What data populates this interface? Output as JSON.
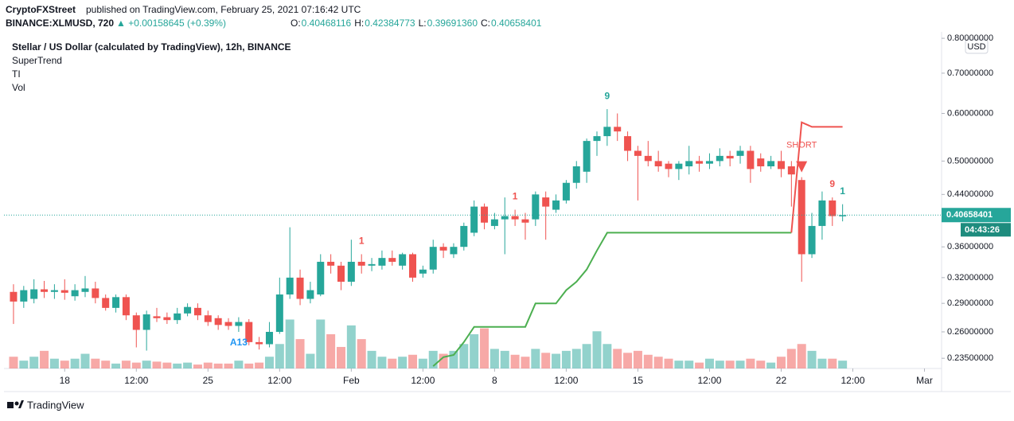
{
  "header": {
    "publisher": "CryptoFXStreet",
    "published": "published on TradingView.com, February 25, 2021 07:16:42 UTC",
    "symbol": "BINANCE:XLMUSD, 720",
    "change": "▲ +0.00158645 (+0.39%)",
    "ohlc": [
      {
        "label": "O:",
        "value": "0.40468116"
      },
      {
        "label": "H:",
        "value": "0.42384773"
      },
      {
        "label": "L:",
        "value": "0.39691360"
      },
      {
        "label": "C:",
        "value": "0.40658401"
      }
    ]
  },
  "chart_data": {
    "type": "candlestick",
    "legend": [
      "Stellar / US Dollar (calculated by TradingView), 12h, BINANCE",
      "SuperTrend",
      "TI",
      "Vol"
    ],
    "currency": "USD",
    "countdown": "04:43:26",
    "brand": "TradingView",
    "up_color": "#26a69a",
    "down_color": "#ef5350",
    "log_scale": true,
    "grid": false,
    "x": [
      0,
      1,
      2,
      3,
      4,
      5,
      6,
      7,
      8,
      9,
      10,
      11,
      12,
      13,
      14,
      15,
      16,
      17,
      18,
      19,
      20,
      21,
      22,
      23,
      24,
      25,
      26,
      27,
      28,
      29,
      30,
      31,
      32,
      33,
      34,
      35,
      36,
      37,
      38,
      39,
      40,
      41,
      42,
      43,
      44,
      45,
      46,
      47,
      48,
      49,
      50,
      51,
      52,
      53,
      54,
      55,
      56,
      57,
      58,
      59,
      60,
      61,
      62,
      63,
      64,
      65,
      66,
      67,
      68,
      69,
      70,
      71,
      72,
      73,
      74,
      75,
      76,
      77,
      78,
      79,
      80,
      81
    ],
    "open": [
      0.303,
      0.292,
      0.295,
      0.306,
      0.303,
      0.305,
      0.298,
      0.303,
      0.307,
      0.296,
      0.285,
      0.297,
      0.277,
      0.262,
      0.276,
      0.275,
      0.272,
      0.279,
      0.285,
      0.277,
      0.274,
      0.27,
      0.266,
      0.27,
      0.25,
      0.248,
      0.26,
      0.3,
      0.32,
      0.295,
      0.3,
      0.34,
      0.335,
      0.315,
      0.34,
      0.335,
      0.335,
      0.345,
      0.335,
      0.35,
      0.325,
      0.33,
      0.36,
      0.35,
      0.36,
      0.38,
      0.42,
      0.39,
      0.4,
      0.405,
      0.4,
      0.4,
      0.435,
      0.415,
      0.43,
      0.46,
      0.48,
      0.54,
      0.55,
      0.57,
      0.55,
      0.52,
      0.51,
      0.5,
      0.495,
      0.485,
      0.49,
      0.5,
      0.495,
      0.5,
      0.51,
      0.51,
      0.52,
      0.505,
      0.49,
      0.5,
      0.49,
      0.465,
      0.35,
      0.39,
      0.43,
      0.40468116
    ],
    "high": [
      0.312,
      0.31,
      0.318,
      0.316,
      0.312,
      0.318,
      0.312,
      0.322,
      0.315,
      0.3,
      0.3,
      0.3,
      0.28,
      0.282,
      0.285,
      0.28,
      0.285,
      0.29,
      0.29,
      0.282,
      0.277,
      0.274,
      0.275,
      0.273,
      0.255,
      0.27,
      0.32,
      0.388,
      0.33,
      0.315,
      0.35,
      0.35,
      0.34,
      0.37,
      0.35,
      0.345,
      0.355,
      0.355,
      0.352,
      0.352,
      0.335,
      0.37,
      0.365,
      0.365,
      0.395,
      0.43,
      0.425,
      0.41,
      0.435,
      0.415,
      0.41,
      0.445,
      0.445,
      0.44,
      0.465,
      0.5,
      0.545,
      0.56,
      0.61,
      0.6,
      0.56,
      0.53,
      0.54,
      0.52,
      0.5,
      0.5,
      0.53,
      0.51,
      0.515,
      0.525,
      0.52,
      0.53,
      0.53,
      0.515,
      0.51,
      0.52,
      0.5,
      0.47,
      0.41,
      0.445,
      0.435,
      0.42384773
    ],
    "low": [
      0.268,
      0.285,
      0.29,
      0.296,
      0.295,
      0.294,
      0.293,
      0.297,
      0.29,
      0.282,
      0.28,
      0.272,
      0.245,
      0.242,
      0.27,
      0.268,
      0.268,
      0.276,
      0.272,
      0.266,
      0.262,
      0.262,
      0.26,
      0.247,
      0.243,
      0.245,
      0.258,
      0.295,
      0.288,
      0.29,
      0.298,
      0.325,
      0.305,
      0.31,
      0.325,
      0.328,
      0.33,
      0.335,
      0.33,
      0.315,
      0.32,
      0.325,
      0.345,
      0.345,
      0.355,
      0.375,
      0.385,
      0.385,
      0.35,
      0.39,
      0.37,
      0.39,
      0.37,
      0.41,
      0.425,
      0.45,
      0.46,
      0.51,
      0.53,
      0.54,
      0.5,
      0.43,
      0.49,
      0.48,
      0.47,
      0.465,
      0.475,
      0.48,
      0.485,
      0.49,
      0.49,
      0.495,
      0.46,
      0.48,
      0.485,
      0.47,
      0.42,
      0.315,
      0.345,
      0.37,
      0.39,
      0.3969136
    ],
    "close": [
      0.292,
      0.305,
      0.306,
      0.303,
      0.305,
      0.302,
      0.305,
      0.307,
      0.296,
      0.285,
      0.297,
      0.277,
      0.262,
      0.278,
      0.274,
      0.272,
      0.279,
      0.286,
      0.277,
      0.27,
      0.267,
      0.266,
      0.27,
      0.25,
      0.248,
      0.26,
      0.3,
      0.32,
      0.295,
      0.305,
      0.34,
      0.335,
      0.315,
      0.34,
      0.335,
      0.337,
      0.345,
      0.34,
      0.35,
      0.32,
      0.33,
      0.36,
      0.355,
      0.36,
      0.39,
      0.42,
      0.395,
      0.4,
      0.405,
      0.4,
      0.395,
      0.44,
      0.42,
      0.43,
      0.46,
      0.49,
      0.54,
      0.55,
      0.57,
      0.56,
      0.52,
      0.51,
      0.5,
      0.49,
      0.485,
      0.495,
      0.5,
      0.495,
      0.5,
      0.51,
      0.505,
      0.52,
      0.485,
      0.49,
      0.5,
      0.485,
      0.475,
      0.35,
      0.39,
      0.43,
      0.405,
      0.40658401
    ],
    "volume": {
      "ylim": [
        0,
        100
      ],
      "values": [
        12,
        8,
        12,
        18,
        10,
        8,
        10,
        15,
        10,
        8,
        5,
        8,
        6,
        8,
        7,
        6,
        5,
        6,
        4,
        6,
        5,
        5,
        8,
        5,
        6,
        12,
        25,
        50,
        30,
        15,
        50,
        35,
        22,
        44,
        30,
        18,
        12,
        10,
        12,
        14,
        10,
        18,
        15,
        18,
        25,
        35,
        41,
        20,
        18,
        14,
        12,
        20,
        16,
        15,
        18,
        20,
        25,
        38,
        25,
        20,
        16,
        18,
        14,
        12,
        10,
        8,
        8,
        6,
        10,
        8,
        8,
        8,
        10,
        8,
        6,
        12,
        20,
        25,
        18,
        10,
        10,
        8
      ]
    },
    "series": [
      {
        "name": "SuperTrend",
        "color": "#4caf50",
        "values": [
          null,
          null,
          null,
          null,
          null,
          null,
          null,
          null,
          null,
          null,
          null,
          null,
          null,
          null,
          null,
          null,
          null,
          null,
          null,
          null,
          null,
          null,
          null,
          null,
          null,
          null,
          null,
          null,
          null,
          null,
          null,
          null,
          null,
          null,
          null,
          null,
          null,
          null,
          null,
          null,
          null,
          0.228,
          0.236,
          0.238,
          0.25,
          0.265,
          0.265,
          0.265,
          0.265,
          0.265,
          0.265,
          0.29,
          0.29,
          0.29,
          0.305,
          0.315,
          0.33,
          0.355,
          0.38,
          0.38,
          0.38,
          0.38,
          0.38,
          0.38,
          0.38,
          0.38,
          0.38,
          0.38,
          0.38,
          0.38,
          0.38,
          0.38,
          0.38,
          0.38,
          0.38,
          0.38,
          0.38,
          null,
          null,
          null,
          null,
          null
        ]
      },
      {
        "name": "SuperTrend",
        "color": "#ef5350",
        "values": [
          null,
          null,
          null,
          null,
          null,
          null,
          null,
          null,
          null,
          null,
          null,
          null,
          null,
          null,
          null,
          null,
          null,
          null,
          null,
          null,
          null,
          null,
          null,
          null,
          null,
          null,
          null,
          null,
          null,
          null,
          null,
          null,
          null,
          null,
          null,
          null,
          null,
          null,
          null,
          null,
          null,
          null,
          null,
          null,
          null,
          null,
          null,
          null,
          null,
          null,
          null,
          null,
          null,
          null,
          null,
          null,
          null,
          null,
          null,
          null,
          null,
          null,
          null,
          null,
          null,
          null,
          null,
          null,
          null,
          null,
          null,
          null,
          null,
          null,
          null,
          null,
          0.38,
          0.58,
          0.57,
          0.57,
          0.57,
          0.57
        ]
      }
    ],
    "annotations": [
      {
        "text": "A13",
        "x": 22,
        "color": "#2196f3",
        "position": "below"
      },
      {
        "text": "1",
        "x": 34,
        "color": "#ef5350",
        "position": "above"
      },
      {
        "text": "1",
        "x": 49,
        "color": "#ef5350",
        "position": "above"
      },
      {
        "text": "9",
        "x": 58,
        "color": "#26a69a",
        "position": "above"
      },
      {
        "text": "SHORT",
        "x": 77,
        "color": "#ef5350",
        "position": "above",
        "marker": "triangle-down"
      },
      {
        "text": "9",
        "x": 80,
        "color": "#ef5350",
        "position": "above"
      },
      {
        "text": "1",
        "x": 81,
        "color": "#26a69a",
        "position": "above"
      }
    ],
    "xlim": [
      -0.93,
      90.67
    ],
    "xticks": [
      {
        "value": 5,
        "label": "18"
      },
      {
        "value": 12,
        "label": "12:00"
      },
      {
        "value": 19,
        "label": "25"
      },
      {
        "value": 26,
        "label": "12:00"
      },
      {
        "value": 33,
        "label": "Feb"
      },
      {
        "value": 40,
        "label": "12:00"
      },
      {
        "value": 47,
        "label": "8"
      },
      {
        "value": 54,
        "label": "12:00"
      },
      {
        "value": 61,
        "label": "15"
      },
      {
        "value": 68,
        "label": "12:00"
      },
      {
        "value": 75,
        "label": "22"
      },
      {
        "value": 82,
        "label": "12:00"
      },
      {
        "value": 89,
        "label": "Mar"
      }
    ],
    "ylim": [
      0.226,
      0.82
    ],
    "yticks": [
      {
        "value": 0.8,
        "label": "0.80000000"
      },
      {
        "value": 0.7,
        "label": "0.70000000"
      },
      {
        "value": 0.6,
        "label": "0.60000000"
      },
      {
        "value": 0.5,
        "label": "0.50000000"
      },
      {
        "value": 0.44,
        "label": "0.44000000"
      },
      {
        "value": 0.36,
        "label": "0.36000000"
      },
      {
        "value": 0.32,
        "label": "0.32000000"
      },
      {
        "value": 0.29,
        "label": "0.29000000"
      },
      {
        "value": 0.26,
        "label": "0.26000000"
      },
      {
        "value": 0.235,
        "label": "0.23500000"
      }
    ]
  }
}
